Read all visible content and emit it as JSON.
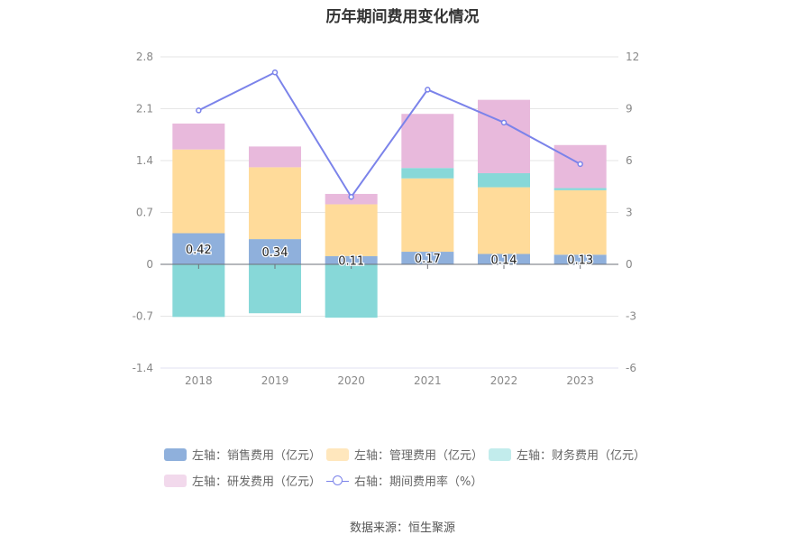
{
  "title": "历年期间费用变化情况",
  "source": "数据来源：恒生聚源",
  "legend": [
    {
      "label": "左轴：销售费用（亿元）",
      "color": "#8fb0dc",
      "kind": "box"
    },
    {
      "label": "左轴：管理费用（亿元）",
      "color": "#ffdb9a",
      "kind": "box"
    },
    {
      "label": "左轴：财务费用（亿元）",
      "color": "#87d8d8",
      "kind": "box"
    },
    {
      "label": "左轴：研发费用（亿元）",
      "color": "#e8b9dc",
      "kind": "box"
    },
    {
      "label": "右轴：期间费用率（%）",
      "color": "#7b83ea",
      "kind": "line"
    }
  ],
  "chart_data": {
    "type": "bar",
    "stacked": true,
    "categories": [
      "2018",
      "2019",
      "2020",
      "2021",
      "2022",
      "2023"
    ],
    "left_axis": {
      "ylim": [
        -1.4,
        2.8
      ],
      "ticks": [
        "2.8",
        "2.1",
        "1.4",
        "0.7",
        "0",
        "-0.7",
        "-1.4"
      ]
    },
    "right_axis": {
      "ylim": [
        -6,
        12
      ],
      "ticks": [
        "12",
        "9",
        "6",
        "3",
        "0",
        "-3",
        "-6"
      ]
    },
    "series": [
      {
        "name": "左轴：销售费用（亿元）",
        "axis": "left",
        "color": "#8fb0dc",
        "values": [
          0.42,
          0.34,
          0.11,
          0.17,
          0.14,
          0.13
        ],
        "labels": [
          "0.42",
          "0.34",
          "0.11",
          "0.17",
          "0.14",
          "0.13"
        ]
      },
      {
        "name": "左轴：管理费用（亿元）",
        "axis": "left",
        "color": "#ffdb9a",
        "values": [
          1.13,
          0.97,
          0.7,
          0.99,
          0.9,
          0.87
        ]
      },
      {
        "name": "左轴：财务费用（亿元）",
        "axis": "left",
        "color": "#87d8d8",
        "values": [
          -0.71,
          -0.66,
          -0.72,
          0.14,
          0.19,
          0.03
        ]
      },
      {
        "name": "左轴：研发费用（亿元）",
        "axis": "left",
        "color": "#e8b9dc",
        "values": [
          0.35,
          0.28,
          0.14,
          0.73,
          0.99,
          0.58
        ]
      },
      {
        "name": "右轴：期间费用率（%）",
        "axis": "right",
        "type": "line",
        "color": "#7b83ea",
        "values": [
          8.9,
          11.1,
          3.9,
          10.1,
          8.2,
          5.8
        ]
      }
    ],
    "grid": true
  }
}
